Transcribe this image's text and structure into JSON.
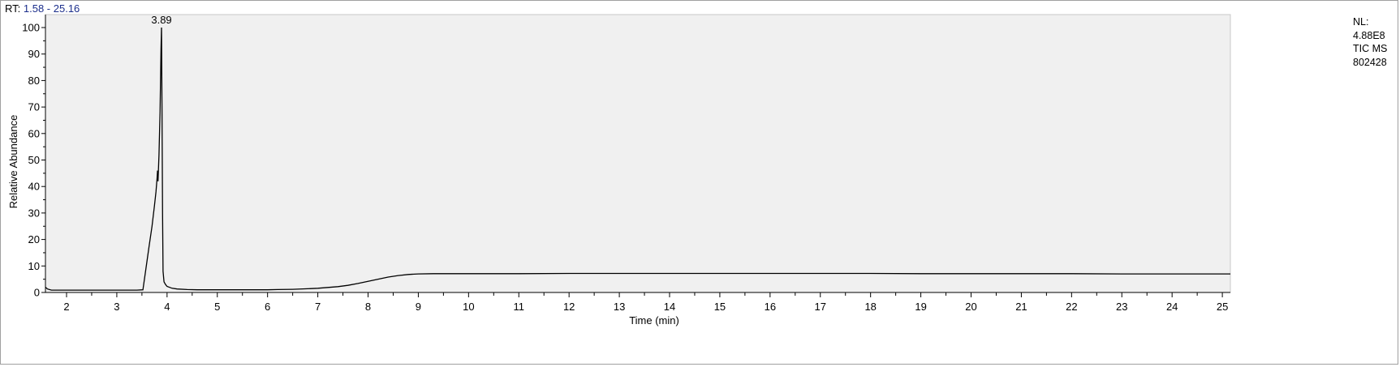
{
  "header": {
    "rt_prefix": "RT: ",
    "rt_range": "1.58 - 25.16"
  },
  "info_panel": {
    "line1": "NL:",
    "line2": "4.88E8",
    "line3": "TIC  MS",
    "line4": "802428"
  },
  "colors": {
    "plot_background": "#f0f0f0",
    "trace": "#000000",
    "rt_value": "#1c2f8c"
  },
  "chart_data": {
    "type": "line",
    "title": "",
    "xlabel": "Time (min)",
    "ylabel": "Relative Abundance",
    "xlim": [
      1.58,
      25.16
    ],
    "ylim": [
      0,
      100
    ],
    "x_ticks": [
      2,
      3,
      4,
      5,
      6,
      7,
      8,
      9,
      10,
      11,
      12,
      13,
      14,
      15,
      16,
      17,
      18,
      19,
      20,
      21,
      22,
      23,
      24,
      25
    ],
    "y_ticks": [
      0,
      10,
      20,
      30,
      40,
      50,
      60,
      70,
      80,
      90,
      100
    ],
    "peak_annotations": [
      {
        "x": 3.89,
        "y": 100,
        "label": "3.89"
      }
    ],
    "series": [
      {
        "x": [
          1.58,
          1.62,
          1.7,
          2.0,
          2.5,
          3.0,
          3.4,
          3.52,
          3.58,
          3.64,
          3.7,
          3.75,
          3.78,
          3.8,
          3.81,
          3.82,
          3.84,
          3.86,
          3.87,
          3.88,
          3.89,
          3.9,
          3.91,
          3.92,
          3.94,
          3.97,
          4.0,
          4.1,
          4.2,
          4.4,
          4.6,
          5.0,
          5.5,
          6.0,
          6.2,
          6.5,
          6.8,
          7.0,
          7.2,
          7.4,
          7.6,
          7.8,
          8.0,
          8.2,
          8.4,
          8.6,
          8.8,
          9.0,
          9.3,
          9.6,
          10.0,
          11.0,
          12.0,
          13.0,
          14.0,
          15.0,
          16.0,
          17.0,
          18.0,
          19.0,
          20.0,
          21.0,
          22.0,
          23.0,
          24.0,
          25.0,
          25.16
        ],
        "y": [
          2.0,
          1.3,
          0.9,
          0.9,
          0.9,
          0.9,
          0.9,
          1.0,
          9.0,
          17.0,
          25.0,
          33.0,
          38.0,
          43.0,
          46.0,
          42.0,
          52.0,
          68.0,
          80.0,
          92.0,
          100.0,
          70.0,
          30.0,
          8.0,
          4.0,
          3.0,
          2.3,
          1.6,
          1.3,
          1.1,
          1.0,
          1.0,
          1.0,
          1.0,
          1.1,
          1.2,
          1.4,
          1.6,
          1.9,
          2.2,
          2.7,
          3.4,
          4.2,
          5.0,
          5.8,
          6.4,
          6.8,
          7.0,
          7.1,
          7.1,
          7.1,
          7.1,
          7.2,
          7.2,
          7.2,
          7.2,
          7.2,
          7.2,
          7.2,
          7.1,
          7.1,
          7.1,
          7.1,
          7.0,
          7.0,
          7.0,
          7.0
        ]
      }
    ]
  }
}
